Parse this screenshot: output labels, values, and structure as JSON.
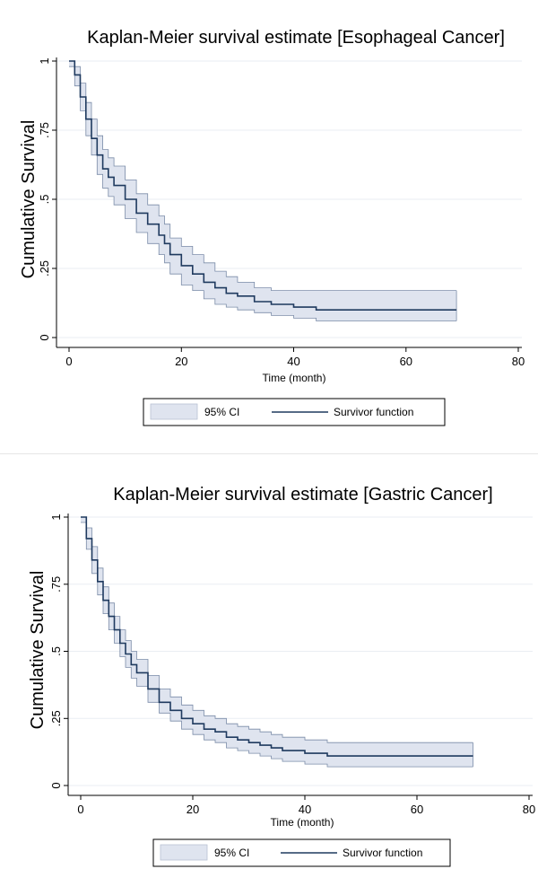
{
  "chart_data": [
    {
      "type": "line",
      "title": "Kaplan-Meier survival estimate [Esophageal Cancer]",
      "xlabel": "Time (month)",
      "ylabel": "Cumulative Survival",
      "xlim": [
        0,
        80
      ],
      "ylim": [
        0,
        1
      ],
      "xticks": [
        "0",
        "20",
        "40",
        "60",
        "80"
      ],
      "yticks": [
        "0",
        ".25",
        ".5",
        ".75",
        "1"
      ],
      "grid": true,
      "legend": {
        "position": "bottom",
        "ci_label": "95% CI",
        "line_label": "Survivor function"
      },
      "colors": {
        "line": "#1f3a5f",
        "band": "#dfe4ef",
        "band_edge": "#7b8ca8"
      },
      "series": [
        {
          "name": "Survivor function",
          "x": [
            0,
            1,
            2,
            3,
            4,
            5,
            6,
            7,
            8,
            10,
            12,
            14,
            16,
            17,
            18,
            20,
            22,
            24,
            26,
            28,
            30,
            33,
            36,
            40,
            44,
            50,
            60,
            69
          ],
          "y": [
            1.0,
            0.95,
            0.87,
            0.79,
            0.72,
            0.66,
            0.61,
            0.58,
            0.55,
            0.5,
            0.45,
            0.41,
            0.37,
            0.34,
            0.3,
            0.26,
            0.23,
            0.2,
            0.18,
            0.16,
            0.15,
            0.13,
            0.12,
            0.11,
            0.1,
            0.1,
            0.1,
            0.1
          ],
          "lower": [
            0.98,
            0.91,
            0.82,
            0.73,
            0.66,
            0.59,
            0.54,
            0.51,
            0.48,
            0.43,
            0.38,
            0.34,
            0.3,
            0.27,
            0.23,
            0.19,
            0.17,
            0.14,
            0.12,
            0.11,
            0.1,
            0.09,
            0.08,
            0.07,
            0.06,
            0.06,
            0.06,
            0.06
          ],
          "upper": [
            1.0,
            0.98,
            0.92,
            0.85,
            0.79,
            0.73,
            0.68,
            0.65,
            0.62,
            0.57,
            0.52,
            0.48,
            0.44,
            0.41,
            0.36,
            0.33,
            0.3,
            0.27,
            0.24,
            0.22,
            0.2,
            0.18,
            0.17,
            0.17,
            0.17,
            0.17,
            0.17,
            0.17
          ]
        }
      ]
    },
    {
      "type": "line",
      "title": "Kaplan-Meier survival estimate [Gastric Cancer]",
      "xlabel": "Time (month)",
      "ylabel": "Cumulative Survival",
      "xlim": [
        0,
        80
      ],
      "ylim": [
        0,
        1
      ],
      "xticks": [
        "0",
        "20",
        "40",
        "60",
        "80"
      ],
      "yticks": [
        "0",
        ".25",
        ".5",
        ".75",
        "1"
      ],
      "grid": true,
      "legend": {
        "position": "bottom",
        "ci_label": "95% CI",
        "line_label": "Survivor function"
      },
      "colors": {
        "line": "#1f3a5f",
        "band": "#dfe4ef",
        "band_edge": "#7b8ca8"
      },
      "series": [
        {
          "name": "Survivor function",
          "x": [
            0,
            1,
            2,
            3,
            4,
            5,
            6,
            7,
            8,
            9,
            10,
            12,
            14,
            16,
            18,
            20,
            22,
            24,
            26,
            28,
            30,
            32,
            34,
            36,
            40,
            44,
            50,
            60,
            70
          ],
          "y": [
            1.0,
            0.92,
            0.84,
            0.76,
            0.69,
            0.63,
            0.58,
            0.53,
            0.49,
            0.45,
            0.42,
            0.36,
            0.31,
            0.28,
            0.25,
            0.23,
            0.21,
            0.2,
            0.18,
            0.17,
            0.16,
            0.15,
            0.14,
            0.13,
            0.12,
            0.11,
            0.11,
            0.11,
            0.11
          ],
          "lower": [
            0.98,
            0.88,
            0.79,
            0.71,
            0.64,
            0.58,
            0.53,
            0.48,
            0.44,
            0.4,
            0.37,
            0.31,
            0.27,
            0.24,
            0.21,
            0.19,
            0.17,
            0.16,
            0.14,
            0.13,
            0.12,
            0.11,
            0.1,
            0.09,
            0.08,
            0.07,
            0.07,
            0.07,
            0.07
          ],
          "upper": [
            1.0,
            0.96,
            0.89,
            0.81,
            0.74,
            0.68,
            0.63,
            0.58,
            0.54,
            0.5,
            0.47,
            0.41,
            0.36,
            0.33,
            0.3,
            0.28,
            0.26,
            0.25,
            0.23,
            0.22,
            0.21,
            0.2,
            0.19,
            0.18,
            0.17,
            0.16,
            0.16,
            0.16,
            0.16
          ]
        }
      ]
    }
  ]
}
